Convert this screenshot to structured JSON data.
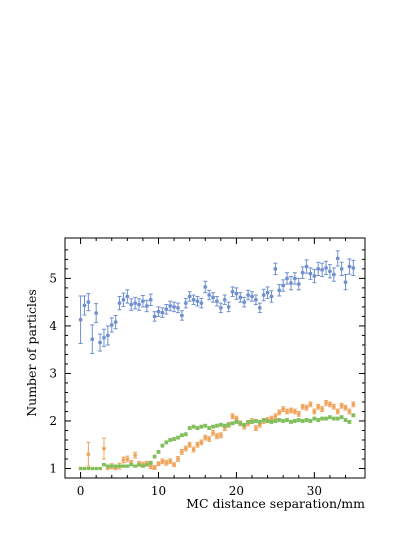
{
  "chart_data": {
    "type": "scatter",
    "title": "",
    "xlabel": "MC distance separation/mm",
    "ylabel": "Number of particles",
    "xlim": [
      -2,
      36.5
    ],
    "ylim": [
      0.8,
      5.85
    ],
    "grid": false,
    "legend": "none",
    "x_ticks": [
      0,
      10,
      20,
      30
    ],
    "y_ticks": [
      1,
      2,
      3,
      4,
      5
    ],
    "x_tick_labels": [
      "0",
      "10",
      "20",
      "30"
    ],
    "y_tick_labels": [
      "1",
      "2",
      "3",
      "4",
      "5"
    ],
    "series": [
      {
        "color": "#6f8fcf",
        "x": [
          0,
          0.5,
          1,
          1.5,
          2,
          2.5,
          3,
          3.5,
          4,
          4.5,
          5,
          5.5,
          6,
          6.5,
          7,
          7.5,
          8,
          8.5,
          9,
          9.5,
          10,
          10.5,
          11,
          11.5,
          12,
          12.5,
          13,
          13.5,
          14,
          14.5,
          15,
          15.5,
          16,
          16.5,
          17,
          17.5,
          18,
          18.5,
          19,
          19.5,
          20,
          20.5,
          21,
          21.5,
          22,
          22.5,
          23,
          23.5,
          24,
          24.5,
          25,
          25.5,
          26,
          26.5,
          27,
          27.5,
          28,
          28.5,
          29,
          29.5,
          30,
          30.5,
          31,
          31.5,
          32,
          32.5,
          33,
          33.5,
          34,
          34.5,
          35
        ],
        "y": [
          4.13,
          4.43,
          4.5,
          3.72,
          4.27,
          3.65,
          3.75,
          3.8,
          4.02,
          4.08,
          4.48,
          4.55,
          4.62,
          4.45,
          4.48,
          4.45,
          4.52,
          4.42,
          4.55,
          4.2,
          4.3,
          4.28,
          4.35,
          4.42,
          4.4,
          4.38,
          4.22,
          4.48,
          4.62,
          4.55,
          4.52,
          4.48,
          4.82,
          4.65,
          4.6,
          4.52,
          4.38,
          4.55,
          4.4,
          4.72,
          4.68,
          4.6,
          4.5,
          4.65,
          4.62,
          4.55,
          4.38,
          4.65,
          4.7,
          4.62,
          5.2,
          4.75,
          4.85,
          5.0,
          4.9,
          5.0,
          4.88,
          5.12,
          5.25,
          5.1,
          5.05,
          5.2,
          5.18,
          5.22,
          5.15,
          5.08,
          5.42,
          5.2,
          4.92,
          5.25,
          5.22
        ],
        "err": [
          0.5,
          0.2,
          0.18,
          0.3,
          0.2,
          0.18,
          0.18,
          0.2,
          0.15,
          0.14,
          0.14,
          0.14,
          0.14,
          0.12,
          0.12,
          0.12,
          0.12,
          0.12,
          0.12,
          0.1,
          0.1,
          0.1,
          0.1,
          0.1,
          0.1,
          0.1,
          0.1,
          0.1,
          0.1,
          0.1,
          0.1,
          0.1,
          0.12,
          0.1,
          0.1,
          0.1,
          0.1,
          0.1,
          0.1,
          0.1,
          0.12,
          0.1,
          0.1,
          0.1,
          0.1,
          0.1,
          0.1,
          0.12,
          0.12,
          0.12,
          0.12,
          0.12,
          0.12,
          0.12,
          0.14,
          0.12,
          0.12,
          0.12,
          0.14,
          0.12,
          0.14,
          0.14,
          0.14,
          0.14,
          0.14,
          0.14,
          0.16,
          0.14,
          0.16,
          0.16,
          0.16
        ]
      },
      {
        "color": "#f0a35a",
        "x": [
          0,
          0.5,
          1,
          1.5,
          2,
          2.5,
          3,
          3.5,
          4,
          4.5,
          5,
          5.5,
          6,
          6.5,
          7,
          7.5,
          8,
          8.5,
          9,
          9.5,
          10,
          10.5,
          11,
          11.5,
          12,
          12.5,
          13,
          13.5,
          14,
          14.5,
          15,
          15.5,
          16,
          16.5,
          17,
          17.5,
          18,
          18.5,
          19,
          19.5,
          20,
          20.5,
          21,
          21.5,
          22,
          22.5,
          23,
          23.5,
          24,
          24.5,
          25,
          25.5,
          26,
          26.5,
          27,
          27.5,
          28,
          28.5,
          29,
          29.5,
          30,
          30.5,
          31,
          31.5,
          32,
          32.5,
          33,
          33.5,
          34,
          34.5,
          35
        ],
        "y": [
          1.0,
          1.0,
          1.3,
          1.0,
          1.0,
          1.0,
          1.42,
          1.0,
          1.05,
          1.0,
          1.05,
          1.18,
          1.2,
          1.12,
          1.28,
          1.1,
          1.08,
          1.1,
          1.05,
          1.02,
          1.1,
          1.15,
          1.12,
          1.15,
          1.08,
          1.2,
          1.35,
          1.42,
          1.5,
          1.4,
          1.5,
          1.55,
          1.65,
          1.62,
          1.75,
          1.68,
          1.7,
          1.85,
          1.92,
          2.1,
          2.05,
          1.95,
          1.88,
          1.95,
          2.0,
          1.85,
          1.92,
          2.0,
          2.02,
          2.05,
          2.1,
          2.18,
          2.25,
          2.2,
          2.22,
          2.2,
          2.15,
          2.3,
          2.28,
          2.35,
          2.2,
          2.3,
          2.25,
          2.38,
          2.35,
          2.3,
          2.2,
          2.32,
          2.28,
          2.2,
          2.35
        ],
        "err": [
          0,
          0,
          0.25,
          0,
          0,
          0,
          0.22,
          0,
          0.05,
          0,
          0.06,
          0.06,
          0.06,
          0.05,
          0.06,
          0.05,
          0.05,
          0.05,
          0.05,
          0.04,
          0.04,
          0.05,
          0.05,
          0.05,
          0.04,
          0.05,
          0.05,
          0.05,
          0.05,
          0.05,
          0.05,
          0.05,
          0.05,
          0.05,
          0.05,
          0.05,
          0.05,
          0.05,
          0.05,
          0.05,
          0.05,
          0.05,
          0.05,
          0.05,
          0.05,
          0.05,
          0.05,
          0.05,
          0.05,
          0.05,
          0.05,
          0.05,
          0.05,
          0.05,
          0.05,
          0.05,
          0.05,
          0.05,
          0.05,
          0.05,
          0.05,
          0.05,
          0.05,
          0.05,
          0.05,
          0.05,
          0.05,
          0.05,
          0.05,
          0.05,
          0.05
        ]
      },
      {
        "color": "#7fbf5a",
        "x": [
          0,
          0.5,
          1,
          1.5,
          2,
          2.5,
          3,
          3.5,
          4,
          4.5,
          5,
          5.5,
          6,
          6.5,
          7,
          7.5,
          8,
          8.5,
          9,
          9.5,
          10,
          10.5,
          11,
          11.5,
          12,
          12.5,
          13,
          13.5,
          14,
          14.5,
          15,
          15.5,
          16,
          16.5,
          17,
          17.5,
          18,
          18.5,
          19,
          19.5,
          20,
          20.5,
          21,
          21.5,
          22,
          22.5,
          23,
          23.5,
          24,
          24.5,
          25,
          25.5,
          26,
          26.5,
          27,
          27.5,
          28,
          28.5,
          29,
          29.5,
          30,
          30.5,
          31,
          31.5,
          32,
          32.5,
          33,
          33.5,
          34,
          34.5,
          35
        ],
        "y": [
          1.0,
          1.0,
          1.0,
          1.0,
          1.0,
          1.0,
          1.08,
          1.05,
          1.05,
          1.05,
          1.05,
          1.05,
          1.05,
          1.08,
          1.05,
          1.08,
          1.05,
          1.08,
          1.12,
          1.25,
          1.35,
          1.48,
          1.55,
          1.6,
          1.62,
          1.65,
          1.7,
          1.72,
          1.85,
          1.88,
          1.85,
          1.88,
          1.9,
          1.85,
          1.88,
          1.9,
          1.92,
          1.9,
          1.92,
          1.95,
          1.98,
          1.95,
          1.92,
          1.98,
          1.98,
          2.0,
          1.98,
          2.02,
          2.0,
          1.98,
          2.0,
          2.02,
          2.0,
          2.02,
          1.98,
          2.0,
          2.02,
          2.0,
          2.02,
          2.0,
          2.05,
          2.02,
          2.05,
          2.05,
          2.08,
          2.05,
          2.05,
          2.08,
          2.02,
          1.98,
          2.12
        ],
        "err": [
          0,
          0,
          0,
          0,
          0,
          0,
          0.02,
          0.02,
          0.02,
          0.02,
          0.02,
          0.02,
          0.02,
          0.02,
          0.02,
          0.02,
          0.02,
          0.02,
          0.03,
          0.03,
          0.03,
          0.03,
          0.03,
          0.03,
          0.03,
          0.03,
          0.03,
          0.03,
          0.03,
          0.03,
          0.03,
          0.03,
          0.03,
          0.03,
          0.03,
          0.03,
          0.03,
          0.03,
          0.03,
          0.03,
          0.03,
          0.03,
          0.03,
          0.03,
          0.03,
          0.03,
          0.03,
          0.03,
          0.03,
          0.03,
          0.03,
          0.03,
          0.03,
          0.03,
          0.03,
          0.03,
          0.03,
          0.03,
          0.03,
          0.03,
          0.03,
          0.03,
          0.03,
          0.03,
          0.03,
          0.03,
          0.03,
          0.03,
          0.03,
          0.03,
          0.03
        ]
      }
    ]
  }
}
